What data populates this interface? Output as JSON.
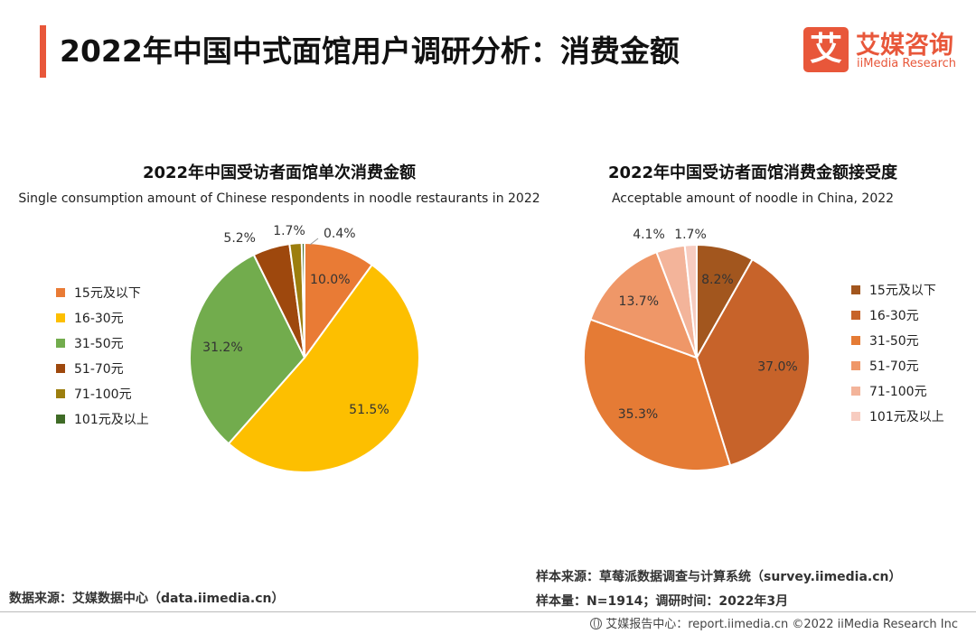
{
  "header": {
    "title": "2022年中国中式面馆用户调研分析：消费金额",
    "logo_mark": "艾",
    "logo_cn": "艾媒咨询",
    "logo_en": "iiMedia Research"
  },
  "chart_data": [
    {
      "type": "pie",
      "title": "2022年中国受访者面馆单次消费金额",
      "subtitle": "Single consumption amount of Chinese respondents in noodle restaurants in 2022",
      "categories": [
        "15元及以下",
        "16-30元",
        "31-50元",
        "51-70元",
        "71-100元",
        "101元及以上"
      ],
      "values": [
        10.0,
        51.5,
        31.2,
        5.2,
        1.7,
        0.4
      ],
      "labels": [
        "10.0%",
        "51.5%",
        "31.2%",
        "5.2%",
        "1.7%",
        "0.4%"
      ],
      "colors": [
        "#E97B35",
        "#FDBF00",
        "#72AC4D",
        "#9E480D",
        "#9C7E0E",
        "#3F6B26"
      ],
      "legend_position": "left"
    },
    {
      "type": "pie",
      "title": "2022年中国受访者面馆消费金额接受度",
      "subtitle": "Acceptable amount of noodle in China, 2022",
      "categories": [
        "15元及以下",
        "16-30元",
        "31-50元",
        "51-70元",
        "71-100元",
        "101元及以上"
      ],
      "values": [
        8.2,
        37.0,
        35.3,
        13.7,
        4.1,
        1.7
      ],
      "labels": [
        "8.2%",
        "37.0%",
        "35.3%",
        "13.7%",
        "4.1%",
        "1.7%"
      ],
      "colors": [
        "#A2561E",
        "#C7632A",
        "#E57B35",
        "#EF9768",
        "#F3B49A",
        "#F7CCC0"
      ],
      "legend_position": "right"
    }
  ],
  "footnotes": {
    "data_source": "数据来源：艾媒数据中心（data.iimedia.cn）",
    "sample_source": "样本来源：草莓派数据调查与计算系统（survey.iimedia.cn）",
    "sample_size": "样本量：N=1914；调研时间：2022年3月"
  },
  "footer": {
    "text": "艾媒报告中心：report.iimedia.cn   ©2022 iiMedia Research Inc"
  }
}
